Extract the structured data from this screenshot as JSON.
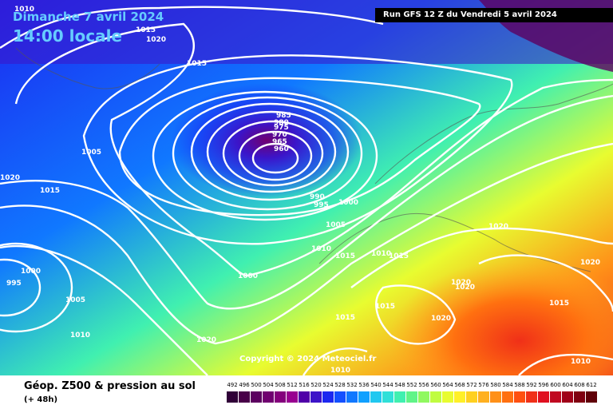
{
  "header": {
    "date": "Dimanche 7 avril 2024",
    "time": "14:00 locale",
    "run": "Run GFS 12 Z du Vendredi 5 avril 2024"
  },
  "copyright": "Copyright © 2024 Meteociel.fr",
  "footer": {
    "title": "Géop. Z500 & pression au sol",
    "subtitle": "(+ 48h)"
  },
  "isobar_labels": [
    "1010",
    "1015",
    "1020",
    "1015",
    "1005",
    "1020",
    "1015",
    "985",
    "980",
    "975",
    "970",
    "965",
    "960",
    "990",
    "995",
    "1000",
    "1005",
    "1010",
    "1015",
    "1010",
    "1015",
    "1020",
    "1020",
    "1020",
    "1020",
    "1015",
    "1015",
    "1020",
    "1015",
    "995",
    "1000",
    "1005",
    "1010",
    "1000",
    "1020",
    "1010",
    "1010"
  ],
  "scale": {
    "values": [
      "492",
      "496",
      "500",
      "504",
      "508",
      "512",
      "516",
      "520",
      "524",
      "528",
      "532",
      "536",
      "540",
      "544",
      "548",
      "552",
      "556",
      "560",
      "564",
      "568",
      "572",
      "576",
      "580",
      "584",
      "588",
      "592",
      "596",
      "600",
      "604",
      "608",
      "612"
    ],
    "colors": [
      "#300038",
      "#480048",
      "#5c0060",
      "#700070",
      "#84007c",
      "#980090",
      "#5000a8",
      "#3c14c8",
      "#1c28f0",
      "#1450ff",
      "#1078ff",
      "#10a0ff",
      "#20c8f0",
      "#30e0d8",
      "#40f0b0",
      "#60f488",
      "#90f860",
      "#c0fc40",
      "#e8fc30",
      "#fff028",
      "#ffd020",
      "#ffb020",
      "#ff9018",
      "#ff7010",
      "#ff5010",
      "#f03018",
      "#e01020",
      "#c00820",
      "#a00018",
      "#800010",
      "#600008"
    ]
  }
}
